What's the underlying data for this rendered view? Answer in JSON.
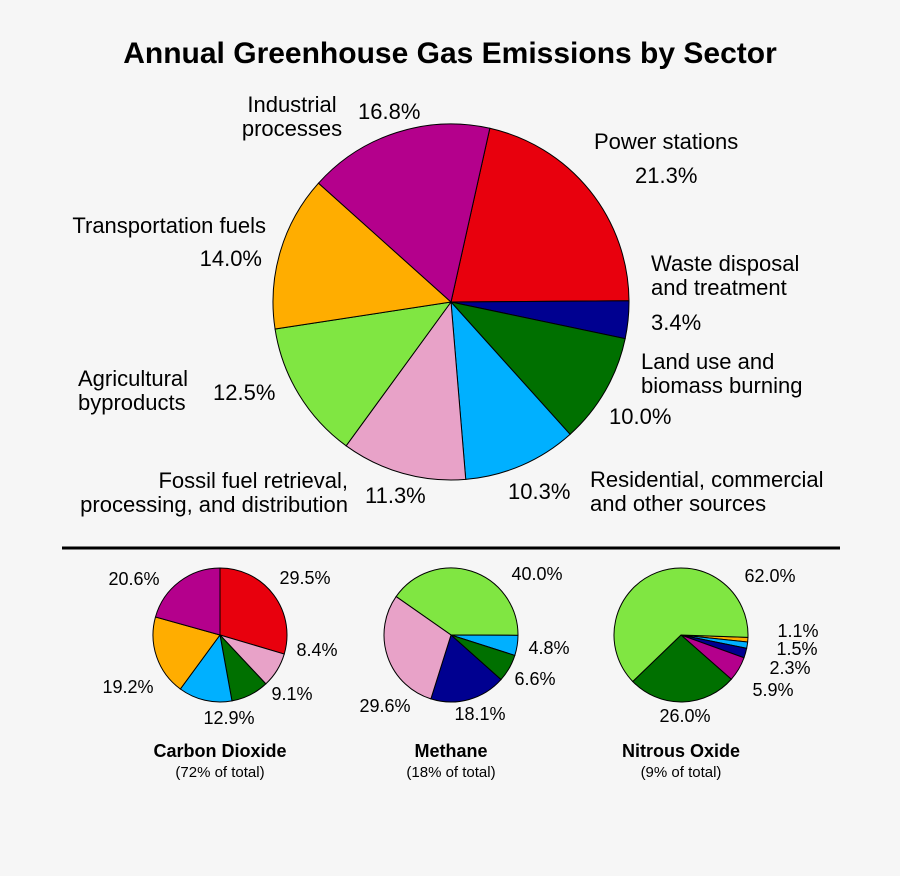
{
  "chart_data": [
    {
      "type": "pie",
      "title": "Annual Greenhouse Gas Emissions by Sector",
      "categories": [
        "Power stations",
        "Waste disposal\nand treatment",
        "Land use and\nbiomass burning",
        "Residential, commercial\nand other sources",
        "Fossil fuel retrieval,\nprocessing, and distribution",
        "Agricultural\nbyproducts",
        "Transportation fuels",
        "Industrial\nprocesses"
      ],
      "values": [
        21.3,
        3.4,
        10.0,
        10.3,
        11.3,
        12.5,
        14.0,
        16.8
      ],
      "value_labels": [
        "21.3%",
        "3.4%",
        "10.0%",
        "10.3%",
        "11.3%",
        "12.5%",
        "14.0%",
        "16.8%"
      ],
      "colors": [
        "#e8000d",
        "#000090",
        "#007000",
        "#00b0ff",
        "#e8a2c8",
        "#80e642",
        "#ffad00",
        "#b4008c"
      ]
    },
    {
      "type": "pie",
      "title": "Carbon Dioxide",
      "subtitle": "(72% of total)",
      "values": [
        29.5,
        8.4,
        9.1,
        12.9,
        19.2,
        20.6
      ],
      "value_labels": [
        "29.5%",
        "8.4%",
        "9.1%",
        "12.9%",
        "19.2%",
        "20.6%"
      ],
      "colors": [
        "#e8000d",
        "#e8a2c8",
        "#007000",
        "#00b0ff",
        "#ffad00",
        "#b4008c"
      ]
    },
    {
      "type": "pie",
      "title": "Methane",
      "subtitle": "(18% of total)",
      "values": [
        40.0,
        4.8,
        6.6,
        18.1,
        29.6
      ],
      "value_labels": [
        "40.0%",
        "4.8%",
        "6.6%",
        "18.1%",
        "29.6%"
      ],
      "colors": [
        "#80e642",
        "#00b0ff",
        "#007000",
        "#000090",
        "#e8a2c8"
      ]
    },
    {
      "type": "pie",
      "title": "Nitrous Oxide",
      "subtitle": "(9% of total)",
      "values": [
        1.1,
        1.5,
        2.3,
        5.9,
        26.0,
        62.0
      ],
      "value_labels": [
        "1.1%",
        "1.5%",
        "2.3%",
        "5.9%",
        "26.0%",
        "62.0%"
      ],
      "colors": [
        "#ffad00",
        "#00b0ff",
        "#000090",
        "#b4008c",
        "#007000",
        "#80e642"
      ]
    }
  ]
}
